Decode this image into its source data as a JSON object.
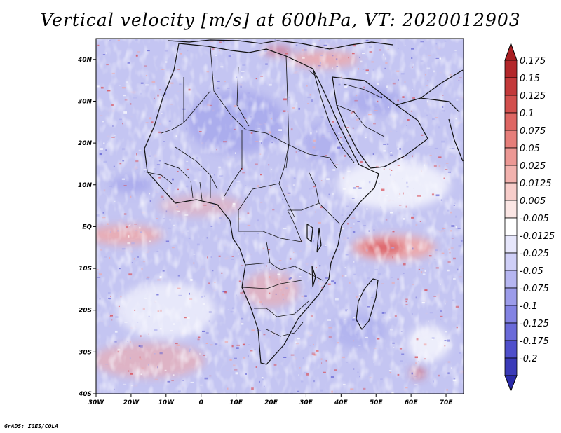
{
  "title": "Vertical velocity [m/s] at 600hPa, VT: 2020012903",
  "credit": "GrADS: IGES/COLA",
  "map": {
    "lon_range": [
      -30,
      75
    ],
    "lat_range": [
      -40,
      45
    ],
    "lon_ticks": [
      {
        "value": -30,
        "label": "30W"
      },
      {
        "value": -20,
        "label": "20W"
      },
      {
        "value": -10,
        "label": "10W"
      },
      {
        "value": 0,
        "label": "0"
      },
      {
        "value": 10,
        "label": "10E"
      },
      {
        "value": 20,
        "label": "20E"
      },
      {
        "value": 30,
        "label": "30E"
      },
      {
        "value": 40,
        "label": "40E"
      },
      {
        "value": 50,
        "label": "50E"
      },
      {
        "value": 60,
        "label": "60E"
      },
      {
        "value": 70,
        "label": "70E"
      }
    ],
    "lat_ticks": [
      {
        "value": 40,
        "label": "40N"
      },
      {
        "value": 30,
        "label": "30N"
      },
      {
        "value": 20,
        "label": "20N"
      },
      {
        "value": 10,
        "label": "10N"
      },
      {
        "value": 0,
        "label": "EQ"
      },
      {
        "value": -10,
        "label": "10S"
      },
      {
        "value": -20,
        "label": "20S"
      },
      {
        "value": -30,
        "label": "30S"
      },
      {
        "value": -40,
        "label": "40S"
      }
    ]
  },
  "colorbar": {
    "levels": [
      {
        "label": "0.175",
        "color": "#b3272a"
      },
      {
        "label": "0.15",
        "color": "#c3393a"
      },
      {
        "label": "0.125",
        "color": "#d24f4d"
      },
      {
        "label": "0.1",
        "color": "#de6663"
      },
      {
        "label": "0.075",
        "color": "#e67e7a"
      },
      {
        "label": "0.05",
        "color": "#ec9894"
      },
      {
        "label": "0.025",
        "color": "#f2b2ae"
      },
      {
        "label": "0.0125",
        "color": "#f7cdca"
      },
      {
        "label": "0.005",
        "color": "#fbe6e4"
      },
      {
        "label": "-0.005",
        "color": "#ffffff"
      },
      {
        "label": "-0.0125",
        "color": "#e6e6fb"
      },
      {
        "label": "-0.025",
        "color": "#cfcff7"
      },
      {
        "label": "-0.05",
        "color": "#b6b6f1"
      },
      {
        "label": "-0.075",
        "color": "#9c9cea"
      },
      {
        "label": "-0.1",
        "color": "#8383e3"
      },
      {
        "label": "-0.125",
        "color": "#6a6ad9"
      },
      {
        "label": "-0.175",
        "color": "#4f4fcb"
      },
      {
        "label": "-0.2",
        "color": "#3a3ab8"
      }
    ],
    "over_color": "#a81e22",
    "under_color": "#2a2aa8"
  },
  "field_colors": {
    "base": "#c4c5f2",
    "strong_up": "#d9434a",
    "mild_up": "#f0a7a7",
    "neutral": "#ffffff",
    "mild_down": "#a9aaec",
    "strong_down": "#5b5bd0"
  }
}
